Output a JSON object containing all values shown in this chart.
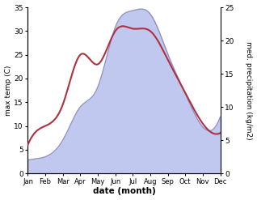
{
  "months": [
    "Jan",
    "Feb",
    "Mar",
    "Apr",
    "May",
    "Jun",
    "Jul",
    "Aug",
    "Sep",
    "Oct",
    "Nov",
    "Dec"
  ],
  "temperature": [
    6.0,
    10.0,
    14.5,
    25.0,
    23.0,
    30.0,
    30.5,
    30.0,
    24.0,
    17.0,
    10.5,
    8.5
  ],
  "precipitation": [
    2.0,
    2.5,
    5.0,
    10.0,
    13.0,
    22.0,
    24.5,
    24.0,
    18.0,
    12.0,
    7.0,
    8.5
  ],
  "temp_color": "#b03040",
  "precip_fill_color": "#c0c8f0",
  "precip_line_color": "#9090c0",
  "left_ylim": [
    0,
    35
  ],
  "right_ylim": [
    0,
    25
  ],
  "left_yticks": [
    0,
    5,
    10,
    15,
    20,
    25,
    30,
    35
  ],
  "right_yticks": [
    0,
    5,
    10,
    15,
    20,
    25
  ],
  "ylabel_left": "max temp (C)",
  "ylabel_right": "med. precipitation (kg/m2)",
  "xlabel": "date (month)",
  "bg_color": "#ffffff"
}
